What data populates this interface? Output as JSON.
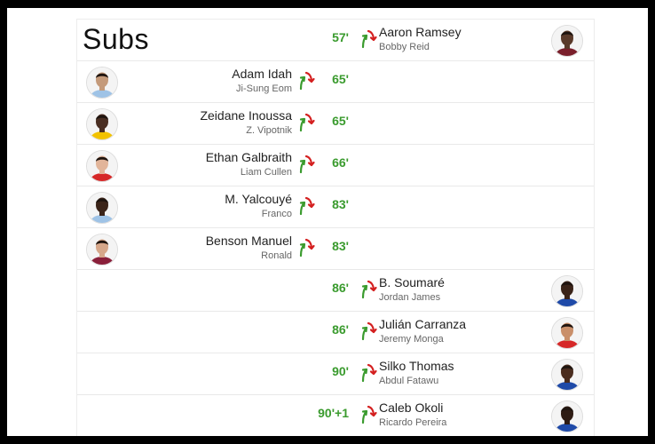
{
  "section_title": "Subs",
  "rows": [
    {
      "side": "away",
      "minute": "57'",
      "player_in": "Aaron Ramsey",
      "player_out": "Bobby Reid",
      "skin": "#5a3a2a",
      "kit": "#7a1f2b"
    },
    {
      "side": "home",
      "minute": "65'",
      "player_in": "Adam Idah",
      "player_out": "Ji-Sung Eom",
      "skin": "#c49a7a",
      "kit": "#9fc3e6"
    },
    {
      "side": "home",
      "minute": "65'",
      "player_in": "Zeidane Inoussa",
      "player_out": "Z. Vipotnik",
      "skin": "#4a2e22",
      "kit": "#f2c200"
    },
    {
      "side": "home",
      "minute": "66'",
      "player_in": "Ethan Galbraith",
      "player_out": "Liam Cullen",
      "skin": "#e2b59a",
      "kit": "#d62828"
    },
    {
      "side": "home",
      "minute": "83'",
      "player_in": "M. Yalcouyé",
      "player_out": "Franco",
      "skin": "#3b2419",
      "kit": "#9fc3e6"
    },
    {
      "side": "home",
      "minute": "83'",
      "player_in": "Benson Manuel",
      "player_out": "Ronald",
      "skin": "#d6a78a",
      "kit": "#8a1f3a"
    },
    {
      "side": "away",
      "minute": "86'",
      "player_in": "B. Soumaré",
      "player_out": "Jordan James",
      "skin": "#3a2318",
      "kit": "#1f4aa8"
    },
    {
      "side": "away",
      "minute": "86'",
      "player_in": "Julián Carranza",
      "player_out": "Jeremy Monga",
      "skin": "#c98f6a",
      "kit": "#d62828"
    },
    {
      "side": "away",
      "minute": "90'",
      "player_in": "Silko Thomas",
      "player_out": "Abdul Fatawu",
      "skin": "#4a2c1e",
      "kit": "#1f4aa8"
    },
    {
      "side": "away",
      "minute": "90'+1",
      "player_in": "Caleb Okoli",
      "player_out": "Ricardo Pereira",
      "skin": "#2f1c14",
      "kit": "#1f4aa8"
    }
  ],
  "colors": {
    "minute_green": "#3a9b2e",
    "arrow_in_green": "#3a9b2e",
    "arrow_out_red": "#d42020"
  },
  "icons": {
    "sub_arrows": "substitution-arrows-icon",
    "avatar": "player-avatar"
  }
}
